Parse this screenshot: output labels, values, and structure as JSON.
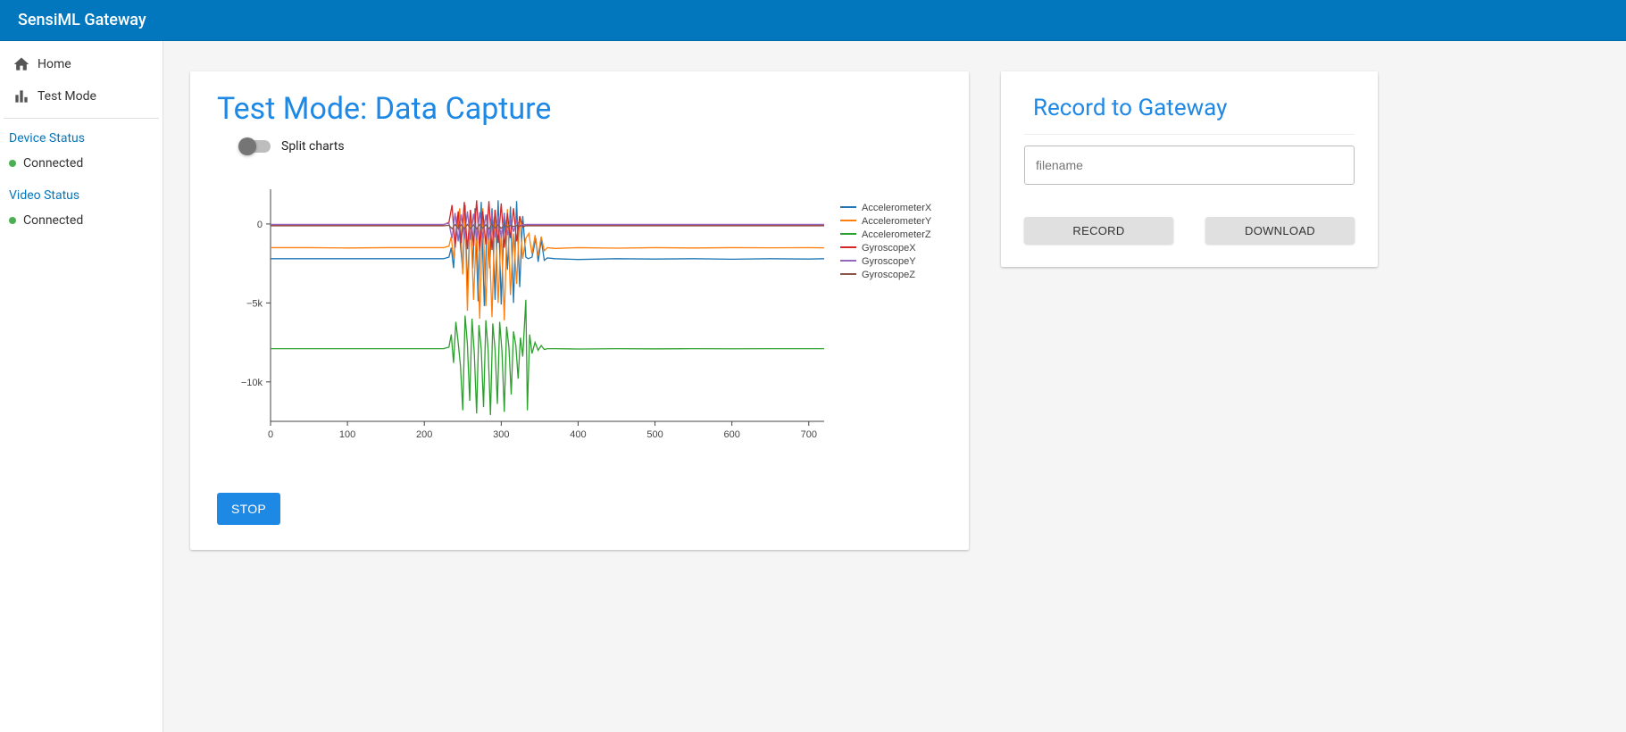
{
  "header": {
    "title": "SensiML Gateway"
  },
  "sidebar": {
    "nav": [
      {
        "label": "Home",
        "icon": "home"
      },
      {
        "label": "Test Mode",
        "icon": "bar-chart"
      }
    ],
    "device_status_heading": "Device Status",
    "device_status_label": "Connected",
    "device_status_color": "#4caf50",
    "video_status_heading": "Video Status",
    "video_status_label": "Connected",
    "video_status_color": "#4caf50"
  },
  "chart_card": {
    "title": "Test Mode: Data Capture",
    "toggle_label": "Split charts",
    "toggle_on": false,
    "stop_button": "STOP"
  },
  "record_card": {
    "title": "Record to Gateway",
    "filename_placeholder": "filename",
    "record_button": "RECORD",
    "download_button": "DOWNLOAD"
  },
  "chart": {
    "type": "line",
    "background_color": "#ffffff",
    "axis_color": "#444444",
    "tick_font_size": 11,
    "tick_color": "#444444",
    "legend_font_size": 11,
    "legend_text_color": "#444444",
    "line_width": 1.3,
    "xlim": [
      0,
      720
    ],
    "xtick_step": 100,
    "ylim": [
      -12500,
      2200
    ],
    "yticks": [
      -10000,
      -5000,
      0
    ],
    "ytick_labels": [
      "−10k",
      "−5k",
      "0"
    ],
    "series": [
      {
        "name": "AccelerometerX",
        "color": "#1f77b4",
        "data": [
          [
            0,
            -2200
          ],
          [
            50,
            -2200
          ],
          [
            100,
            -2200
          ],
          [
            150,
            -2200
          ],
          [
            200,
            -2200
          ],
          [
            225,
            -2200
          ],
          [
            232,
            -2100
          ],
          [
            235,
            -1500
          ],
          [
            238,
            -2800
          ],
          [
            240,
            -1200
          ],
          [
            243,
            500
          ],
          [
            246,
            -800
          ],
          [
            250,
            -3000
          ],
          [
            253,
            1200
          ],
          [
            256,
            -4200
          ],
          [
            260,
            800
          ],
          [
            263,
            -2800
          ],
          [
            266,
            1000
          ],
          [
            270,
            -4900
          ],
          [
            274,
            1400
          ],
          [
            278,
            -5200
          ],
          [
            282,
            600
          ],
          [
            285,
            -2800
          ],
          [
            288,
            1000
          ],
          [
            292,
            -4800
          ],
          [
            296,
            1500
          ],
          [
            300,
            -5100
          ],
          [
            304,
            700
          ],
          [
            308,
            -2900
          ],
          [
            312,
            1100
          ],
          [
            316,
            -5000
          ],
          [
            320,
            1450
          ],
          [
            324,
            -4000
          ],
          [
            328,
            500
          ],
          [
            332,
            -2100
          ],
          [
            335,
            -2200
          ],
          [
            340,
            -2100
          ],
          [
            345,
            -900
          ],
          [
            348,
            -2400
          ],
          [
            352,
            -1000
          ],
          [
            356,
            -2300
          ],
          [
            360,
            -2150
          ],
          [
            370,
            -2200
          ],
          [
            400,
            -2250
          ],
          [
            450,
            -2200
          ],
          [
            500,
            -2220
          ],
          [
            550,
            -2200
          ],
          [
            600,
            -2230
          ],
          [
            650,
            -2200
          ],
          [
            700,
            -2220
          ],
          [
            720,
            -2200
          ]
        ]
      },
      {
        "name": "AccelerometerY",
        "color": "#ff7f0e",
        "data": [
          [
            0,
            -1500
          ],
          [
            50,
            -1500
          ],
          [
            100,
            -1520
          ],
          [
            150,
            -1500
          ],
          [
            200,
            -1500
          ],
          [
            225,
            -1500
          ],
          [
            232,
            -1400
          ],
          [
            235,
            -800
          ],
          [
            238,
            -2200
          ],
          [
            242,
            -600
          ],
          [
            246,
            1000
          ],
          [
            250,
            -3200
          ],
          [
            253,
            500
          ],
          [
            256,
            -5500
          ],
          [
            260,
            800
          ],
          [
            264,
            -4800
          ],
          [
            268,
            -200
          ],
          [
            272,
            -6000
          ],
          [
            276,
            1000
          ],
          [
            280,
            -5200
          ],
          [
            284,
            -300
          ],
          [
            288,
            -5900
          ],
          [
            292,
            900
          ],
          [
            296,
            -5000
          ],
          [
            300,
            -400
          ],
          [
            304,
            -6100
          ],
          [
            308,
            950
          ],
          [
            312,
            -4500
          ],
          [
            316,
            -600
          ],
          [
            320,
            -3800
          ],
          [
            324,
            400
          ],
          [
            328,
            -2200
          ],
          [
            332,
            -900
          ],
          [
            336,
            -600
          ],
          [
            340,
            -1900
          ],
          [
            344,
            -700
          ],
          [
            348,
            -2000
          ],
          [
            352,
            -800
          ],
          [
            356,
            -1700
          ],
          [
            360,
            -1500
          ],
          [
            370,
            -1550
          ],
          [
            400,
            -1500
          ],
          [
            450,
            -1530
          ],
          [
            500,
            -1500
          ],
          [
            550,
            -1520
          ],
          [
            600,
            -1500
          ],
          [
            650,
            -1510
          ],
          [
            700,
            -1500
          ],
          [
            720,
            -1510
          ]
        ]
      },
      {
        "name": "AccelerometerZ",
        "color": "#2ca02c",
        "data": [
          [
            0,
            -7900
          ],
          [
            50,
            -7900
          ],
          [
            100,
            -7900
          ],
          [
            150,
            -7900
          ],
          [
            200,
            -7900
          ],
          [
            225,
            -7900
          ],
          [
            232,
            -7800
          ],
          [
            235,
            -7000
          ],
          [
            238,
            -8800
          ],
          [
            241,
            -6200
          ],
          [
            244,
            -7500
          ],
          [
            247,
            -9000
          ],
          [
            250,
            -11800
          ],
          [
            253,
            -5800
          ],
          [
            256,
            -7600
          ],
          [
            259,
            -11200
          ],
          [
            262,
            -6000
          ],
          [
            265,
            -8200
          ],
          [
            268,
            -12000
          ],
          [
            271,
            -6400
          ],
          [
            274,
            -7900
          ],
          [
            277,
            -11600
          ],
          [
            280,
            -6100
          ],
          [
            283,
            -8000
          ],
          [
            286,
            -12100
          ],
          [
            289,
            -6300
          ],
          [
            292,
            -7950
          ],
          [
            295,
            -11400
          ],
          [
            298,
            -6200
          ],
          [
            301,
            -8100
          ],
          [
            304,
            -11900
          ],
          [
            307,
            -6500
          ],
          [
            310,
            -7800
          ],
          [
            313,
            -10800
          ],
          [
            316,
            -6800
          ],
          [
            319,
            -7700
          ],
          [
            322,
            -9800
          ],
          [
            325,
            -7200
          ],
          [
            328,
            -8400
          ],
          [
            332,
            -4800
          ],
          [
            334,
            -11800
          ],
          [
            337,
            -7000
          ],
          [
            340,
            -8200
          ],
          [
            344,
            -7500
          ],
          [
            348,
            -8000
          ],
          [
            352,
            -7700
          ],
          [
            356,
            -7950
          ],
          [
            360,
            -7900
          ],
          [
            370,
            -7900
          ],
          [
            400,
            -7920
          ],
          [
            450,
            -7900
          ],
          [
            500,
            -7910
          ],
          [
            550,
            -7900
          ],
          [
            600,
            -7905
          ],
          [
            650,
            -7900
          ],
          [
            700,
            -7900
          ],
          [
            720,
            -7900
          ]
        ]
      },
      {
        "name": "GyroscopeX",
        "color": "#d62728",
        "data": [
          [
            0,
            -50
          ],
          [
            50,
            -50
          ],
          [
            100,
            -50
          ],
          [
            150,
            -50
          ],
          [
            200,
            -50
          ],
          [
            225,
            -50
          ],
          [
            232,
            100
          ],
          [
            236,
            1200
          ],
          [
            240,
            -1500
          ],
          [
            244,
            800
          ],
          [
            248,
            -1200
          ],
          [
            252,
            1400
          ],
          [
            256,
            -1600
          ],
          [
            260,
            900
          ],
          [
            264,
            -1400
          ],
          [
            268,
            1500
          ],
          [
            272,
            -1700
          ],
          [
            276,
            800
          ],
          [
            280,
            -1300
          ],
          [
            284,
            1450
          ],
          [
            288,
            -1650
          ],
          [
            292,
            900
          ],
          [
            296,
            -1200
          ],
          [
            300,
            1300
          ],
          [
            304,
            -1500
          ],
          [
            308,
            700
          ],
          [
            312,
            -900
          ],
          [
            316,
            1000
          ],
          [
            320,
            -1100
          ],
          [
            324,
            500
          ],
          [
            328,
            -200
          ],
          [
            332,
            -100
          ],
          [
            336,
            -60
          ],
          [
            340,
            -50
          ],
          [
            350,
            -50
          ],
          [
            400,
            -50
          ],
          [
            450,
            -50
          ],
          [
            500,
            -50
          ],
          [
            550,
            -50
          ],
          [
            600,
            -50
          ],
          [
            650,
            -50
          ],
          [
            700,
            -50
          ],
          [
            720,
            -50
          ]
        ]
      },
      {
        "name": "GyroscopeY",
        "color": "#9467bd",
        "data": [
          [
            0,
            -30
          ],
          [
            50,
            -30
          ],
          [
            100,
            -30
          ],
          [
            150,
            -30
          ],
          [
            200,
            -30
          ],
          [
            225,
            -30
          ],
          [
            232,
            50
          ],
          [
            236,
            -900
          ],
          [
            240,
            700
          ],
          [
            244,
            -1100
          ],
          [
            248,
            600
          ],
          [
            252,
            -950
          ],
          [
            256,
            800
          ],
          [
            260,
            -1000
          ],
          [
            264,
            650
          ],
          [
            268,
            -1050
          ],
          [
            272,
            750
          ],
          [
            276,
            -900
          ],
          [
            280,
            600
          ],
          [
            284,
            -1000
          ],
          [
            288,
            700
          ],
          [
            292,
            -850
          ],
          [
            296,
            550
          ],
          [
            300,
            -900
          ],
          [
            304,
            600
          ],
          [
            308,
            -700
          ],
          [
            312,
            400
          ],
          [
            316,
            -500
          ],
          [
            320,
            200
          ],
          [
            324,
            -100
          ],
          [
            328,
            -50
          ],
          [
            332,
            -30
          ],
          [
            340,
            -30
          ],
          [
            350,
            -30
          ],
          [
            400,
            -30
          ],
          [
            450,
            -30
          ],
          [
            500,
            -30
          ],
          [
            550,
            -30
          ],
          [
            600,
            -30
          ],
          [
            650,
            -30
          ],
          [
            700,
            -30
          ],
          [
            720,
            -30
          ]
        ]
      },
      {
        "name": "GyroscopeZ",
        "color": "#8c564b",
        "data": [
          [
            0,
            -120
          ],
          [
            50,
            -120
          ],
          [
            100,
            -120
          ],
          [
            150,
            -120
          ],
          [
            200,
            -120
          ],
          [
            225,
            -120
          ],
          [
            232,
            -80
          ],
          [
            236,
            -300
          ],
          [
            240,
            -40
          ],
          [
            244,
            -280
          ],
          [
            248,
            -50
          ],
          [
            252,
            -320
          ],
          [
            256,
            -30
          ],
          [
            260,
            -290
          ],
          [
            264,
            -60
          ],
          [
            268,
            -310
          ],
          [
            272,
            -40
          ],
          [
            276,
            -270
          ],
          [
            280,
            -50
          ],
          [
            284,
            -300
          ],
          [
            288,
            -30
          ],
          [
            292,
            -260
          ],
          [
            296,
            -60
          ],
          [
            300,
            -280
          ],
          [
            304,
            -40
          ],
          [
            308,
            -200
          ],
          [
            312,
            -80
          ],
          [
            316,
            -160
          ],
          [
            320,
            -100
          ],
          [
            324,
            -130
          ],
          [
            328,
            -120
          ],
          [
            332,
            -120
          ],
          [
            340,
            -120
          ],
          [
            350,
            -120
          ],
          [
            400,
            -120
          ],
          [
            450,
            -120
          ],
          [
            500,
            -120
          ],
          [
            550,
            -120
          ],
          [
            600,
            -120
          ],
          [
            650,
            -120
          ],
          [
            700,
            -120
          ],
          [
            720,
            -120
          ]
        ]
      }
    ]
  }
}
